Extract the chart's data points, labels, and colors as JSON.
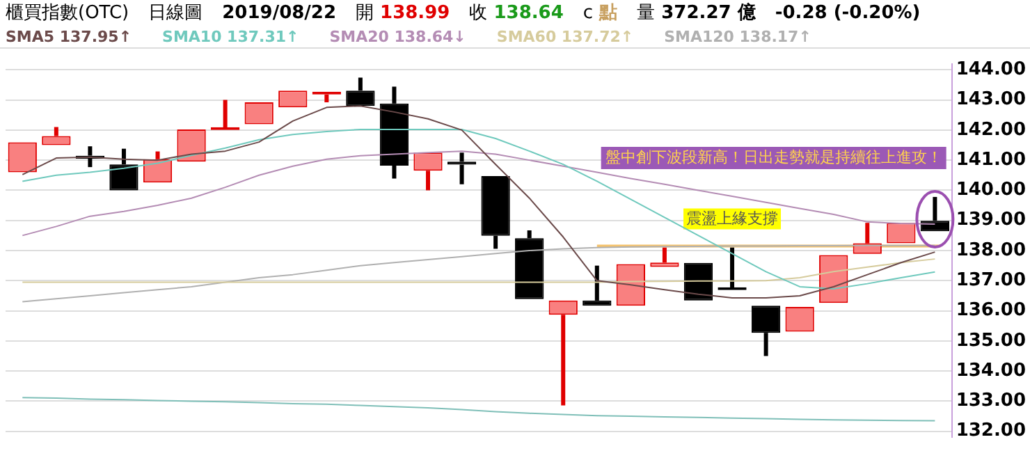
{
  "chart_data": {
    "type": "candlestick",
    "title": "櫃買指數(OTC)",
    "subtitle": "日線圖",
    "categories": [
      null,
      null,
      null,
      null,
      null,
      null,
      null,
      null,
      null,
      null,
      null,
      null,
      null,
      null,
      null,
      null,
      null,
      null,
      null,
      null,
      null,
      null,
      null,
      null,
      null,
      null,
      null,
      null
    ],
    "ohlc": [
      [
        140.6,
        141.65,
        140.55,
        141.59
      ],
      [
        141.5,
        142.1,
        141.5,
        141.8
      ],
      [
        141.15,
        141.46,
        140.77,
        141.05
      ],
      [
        140.86,
        141.38,
        140.0,
        140.0
      ],
      [
        140.26,
        141.29,
        140.26,
        141.03
      ],
      [
        140.95,
        142.05,
        140.95,
        142.02
      ],
      [
        142.0,
        143.0,
        141.94,
        142.06
      ],
      [
        142.19,
        142.95,
        142.19,
        142.92
      ],
      [
        142.75,
        143.31,
        142.75,
        143.31
      ],
      [
        143.18,
        143.27,
        142.92,
        143.27
      ],
      [
        143.31,
        143.74,
        142.8,
        142.8
      ],
      [
        142.88,
        143.44,
        140.39,
        140.82
      ],
      [
        140.65,
        141.25,
        140.0,
        141.25
      ],
      [
        140.95,
        141.25,
        140.2,
        140.85
      ],
      [
        140.47,
        140.47,
        138.06,
        138.49
      ],
      [
        138.41,
        138.67,
        136.34,
        136.39
      ],
      [
        135.87,
        136.4,
        132.86,
        136.34
      ],
      [
        136.34,
        137.5,
        136.17,
        136.17
      ],
      [
        136.17,
        137.6,
        136.17,
        137.55
      ],
      [
        137.46,
        138.1,
        137.46,
        137.6
      ],
      [
        137.59,
        137.65,
        136.3,
        136.34
      ],
      [
        136.77,
        138.1,
        136.69,
        136.69
      ],
      [
        136.17,
        136.17,
        134.5,
        135.27
      ],
      [
        135.31,
        136.15,
        135.31,
        136.13
      ],
      [
        136.26,
        137.87,
        136.26,
        137.85
      ],
      [
        137.89,
        138.92,
        137.89,
        138.24
      ],
      [
        138.24,
        138.95,
        138.24,
        138.92
      ],
      [
        138.99,
        139.78,
        138.58,
        138.64
      ]
    ],
    "series": [
      {
        "type": "line",
        "name": "SMA5 137.95↑",
        "color": "#6b4a4a",
        "values": [
          140.52,
          141.07,
          141.1,
          141.03,
          141.0,
          141.2,
          141.3,
          141.6,
          142.3,
          142.75,
          142.8,
          142.6,
          142.37,
          142.0,
          140.86,
          139.74,
          138.45,
          137.0,
          136.86,
          136.7,
          136.55,
          136.43,
          136.43,
          136.5,
          136.8,
          137.2,
          137.6,
          137.95
        ]
      },
      {
        "type": "line",
        "name": "SMA10 137.31↑",
        "color": "#6fc9bd",
        "values": [
          140.3,
          140.5,
          140.6,
          140.73,
          140.9,
          141.16,
          141.4,
          141.68,
          141.85,
          141.95,
          142.02,
          142.02,
          142.02,
          142.02,
          141.72,
          141.3,
          140.86,
          140.3,
          139.7,
          139.1,
          138.5,
          137.9,
          137.3,
          136.8,
          136.73,
          136.9,
          137.1,
          137.29
        ]
      },
      {
        "type": "line",
        "name": "SMA20 138.64↓",
        "color": "#b48cb4",
        "values": [
          138.5,
          138.8,
          139.14,
          139.3,
          139.5,
          139.74,
          140.1,
          140.5,
          140.8,
          141.03,
          141.15,
          141.2,
          141.25,
          141.3,
          141.2,
          141.0,
          140.8,
          140.6,
          140.39,
          140.2,
          140.0,
          139.8,
          139.6,
          139.4,
          139.2,
          138.95,
          138.9,
          138.88
        ]
      },
      {
        "type": "line",
        "name": "SMA60 137.72↑",
        "color": "#d6cb9c",
        "values": [
          136.95,
          136.95,
          136.95,
          136.95,
          136.95,
          136.95,
          136.95,
          136.95,
          136.95,
          136.95,
          136.95,
          136.95,
          136.95,
          136.95,
          136.95,
          136.95,
          136.95,
          136.95,
          136.97,
          136.98,
          136.99,
          136.99,
          137.0,
          137.1,
          137.3,
          137.45,
          137.6,
          137.72
        ]
      },
      {
        "type": "line",
        "name": "SMA120 138.17↑",
        "color": "#b0b0b0",
        "values": [
          136.3,
          136.4,
          136.5,
          136.6,
          136.7,
          136.8,
          136.95,
          137.1,
          137.2,
          137.35,
          137.5,
          137.6,
          137.7,
          137.8,
          137.9,
          138.0,
          138.06,
          138.1,
          138.12,
          138.13,
          138.14,
          138.15,
          138.15,
          138.16,
          138.16,
          138.17,
          138.17,
          138.17
        ]
      },
      {
        "type": "line",
        "color": "#7fbfb8",
        "values": [
          133.12,
          133.1,
          133.07,
          133.05,
          133.02,
          133.0,
          132.98,
          132.95,
          132.92,
          132.9,
          132.86,
          132.82,
          132.78,
          132.72,
          132.65,
          132.6,
          132.56,
          132.52,
          132.5,
          132.48,
          132.46,
          132.44,
          132.42,
          132.4,
          132.38,
          132.37,
          132.36,
          132.35
        ]
      }
    ],
    "ylim": [
      131.8,
      144.2
    ],
    "yticks": [
      {
        "value": 132,
        "label": "132.00"
      },
      {
        "value": 133,
        "label": "133.00"
      },
      {
        "value": 134,
        "label": "134.00"
      },
      {
        "value": 135,
        "label": "135.00"
      },
      {
        "value": 136,
        "label": "136.00"
      },
      {
        "value": 137,
        "label": "137.00"
      },
      {
        "value": 138,
        "label": "138.00"
      },
      {
        "value": 139,
        "label": "139.00"
      },
      {
        "value": 140,
        "label": "140.00"
      },
      {
        "value": 141,
        "label": "141.00"
      },
      {
        "value": 142,
        "label": "142.00"
      },
      {
        "value": 143,
        "label": "143.00"
      },
      {
        "value": 144,
        "label": "144.00"
      }
    ],
    "grid": "y",
    "legend": "top left",
    "ref_lines": [
      {
        "axis": "y",
        "value": 138.15,
        "label": "震盪上緣支撐",
        "color": "#f5c26b"
      }
    ],
    "annotations": [
      "2019/08/22",
      "開 138.99",
      "收 138.64",
      "c 點",
      "量 372.27 億",
      "-0.28 (-0.20%)",
      "盤中創下波段新高！日出走勢就是持續往上進攻！"
    ]
  }
}
